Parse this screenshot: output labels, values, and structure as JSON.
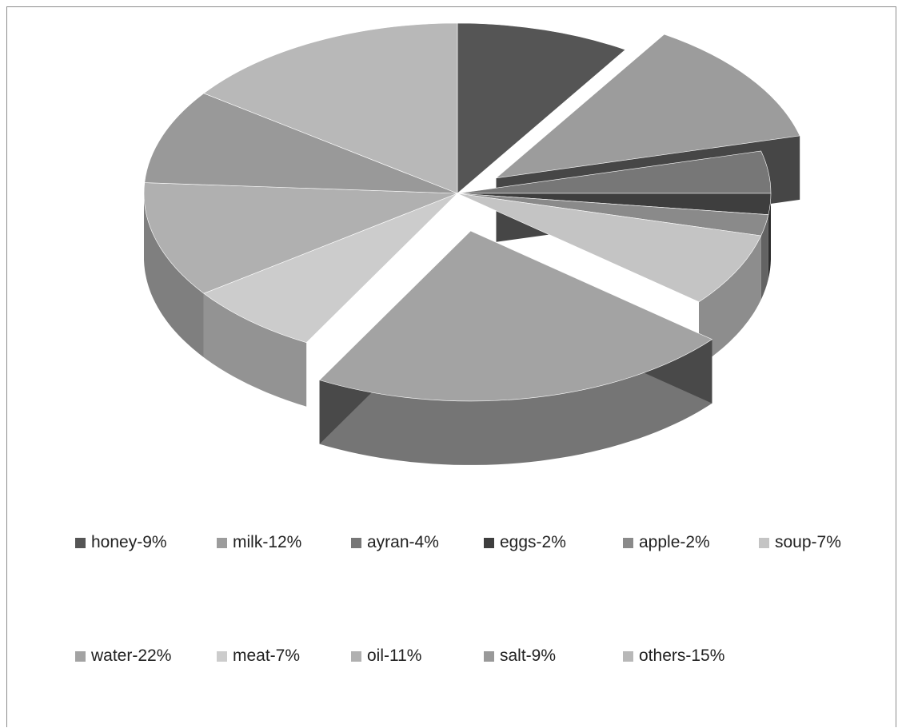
{
  "chart_data": {
    "type": "pie",
    "style": "3d-exploded",
    "legend_position": "bottom",
    "slices": [
      {
        "label": "honey-9%",
        "value": 9,
        "color": "#555555"
      },
      {
        "label": "milk-12%",
        "value": 12,
        "color": "#9c9c9c"
      },
      {
        "label": "ayran-4%",
        "value": 4,
        "color": "#777777"
      },
      {
        "label": "eggs-2%",
        "value": 2,
        "color": "#3e3e3e"
      },
      {
        "label": "apple-2%",
        "value": 2,
        "color": "#8a8a8a"
      },
      {
        "label": "soup-7%",
        "value": 7,
        "color": "#c4c4c4"
      },
      {
        "label": "water-22%",
        "value": 22,
        "color": "#a3a3a3"
      },
      {
        "label": "meat-7%",
        "value": 7,
        "color": "#cccccc"
      },
      {
        "label": "oil-11%",
        "value": 11,
        "color": "#b0b0b0"
      },
      {
        "label": "salt-9%",
        "value": 9,
        "color": "#999999"
      },
      {
        "label": "others-15%",
        "value": 15,
        "color": "#b8b8b8"
      }
    ]
  }
}
